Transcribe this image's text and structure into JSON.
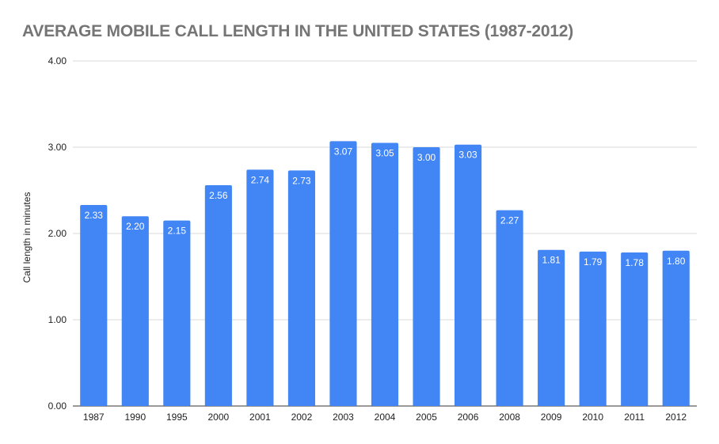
{
  "chart_data": {
    "type": "bar",
    "title": "AVERAGE MOBILE CALL LENGTH IN THE UNITED STATES (1987-2012)",
    "xlabel": "",
    "ylabel": "Call length in minutes",
    "categories": [
      "1987",
      "1990",
      "1995",
      "2000",
      "2001",
      "2002",
      "2003",
      "2004",
      "2005",
      "2006",
      "2008",
      "2009",
      "2010",
      "2011",
      "2012"
    ],
    "values": [
      2.33,
      2.2,
      2.15,
      2.56,
      2.74,
      2.73,
      3.07,
      3.05,
      3.0,
      3.03,
      2.27,
      1.81,
      1.79,
      1.78,
      1.8
    ],
    "data_labels": [
      "2.33",
      "2.20",
      "2.15",
      "2.56",
      "2.74",
      "2.73",
      "3.07",
      "3.05",
      "3.00",
      "3.03",
      "2.27",
      "1.81",
      "1.79",
      "1.78",
      "1.80"
    ],
    "y_ticks": [
      "0.00",
      "1.00",
      "2.00",
      "3.00",
      "4.00"
    ],
    "ylim": [
      0,
      4
    ],
    "grid": true,
    "legend": "none",
    "bar_color": "#4285f4",
    "gridline_color": "#d9d9d9"
  }
}
